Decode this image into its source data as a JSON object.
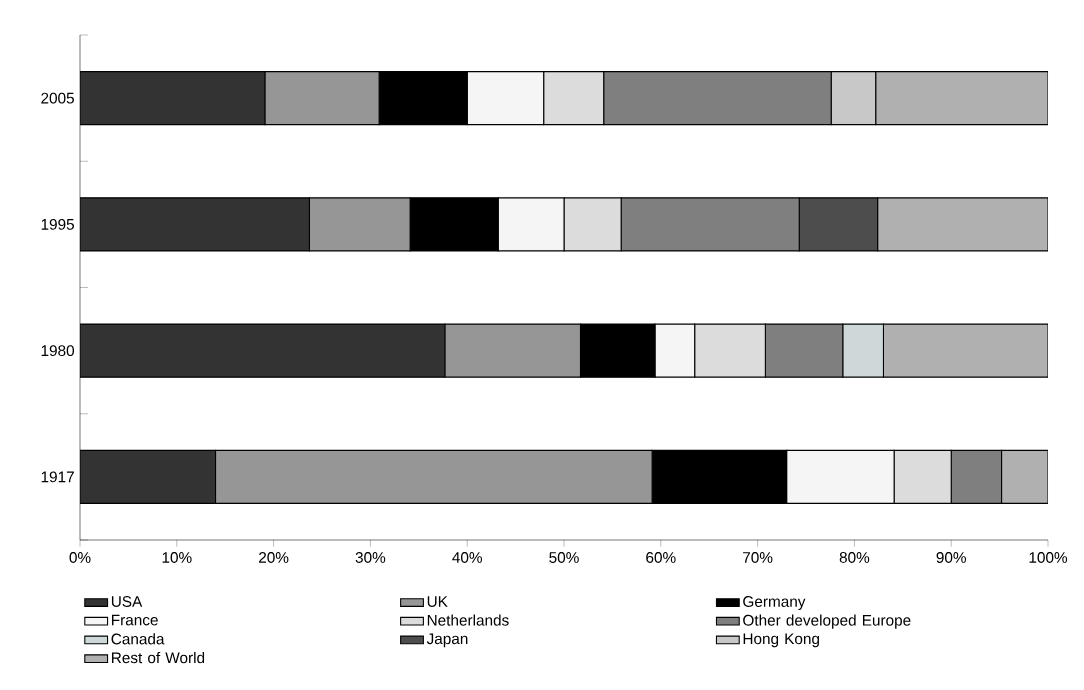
{
  "chart_data": {
    "type": "bar",
    "orientation": "horizontal",
    "stacked": true,
    "categories": [
      "2005",
      "1995",
      "1980",
      "1917"
    ],
    "series": [
      {
        "name": "USA",
        "color": "#333333",
        "values": [
          19.1,
          23.7,
          37.7,
          14.0
        ]
      },
      {
        "name": "UK",
        "color": "#969696",
        "values": [
          11.8,
          10.4,
          14.0,
          45.1
        ]
      },
      {
        "name": "Germany",
        "color": "#000000",
        "values": [
          9.1,
          9.1,
          7.7,
          13.9
        ]
      },
      {
        "name": "France",
        "color": "#f5f5f5",
        "values": [
          7.9,
          6.8,
          4.1,
          11.1
        ]
      },
      {
        "name": "Netherlands",
        "color": "#dcdcdc",
        "values": [
          6.2,
          5.9,
          7.3,
          5.9
        ]
      },
      {
        "name": "Other developed Europe",
        "color": "#7f7f7f",
        "values": [
          23.5,
          18.4,
          8.0,
          5.2
        ]
      },
      {
        "name": "Canada",
        "color": "#cfd8d8",
        "values": [
          0,
          0,
          4.2,
          0
        ]
      },
      {
        "name": "Japan",
        "color": "#4d4d4d",
        "values": [
          0,
          8.1,
          0,
          0
        ]
      },
      {
        "name": "Hong Kong",
        "color": "#c8c8c8",
        "values": [
          4.6,
          0,
          0,
          0
        ]
      },
      {
        "name": "Rest of World",
        "color": "#b0b0b0",
        "values": [
          17.8,
          17.6,
          17.0,
          4.8
        ]
      }
    ],
    "xlim": [
      0,
      100
    ],
    "xticks": [
      {
        "value": 0,
        "label": "0%"
      },
      {
        "value": 10,
        "label": "10%"
      },
      {
        "value": 20,
        "label": "20%"
      },
      {
        "value": 30,
        "label": "30%"
      },
      {
        "value": 40,
        "label": "40%"
      },
      {
        "value": 50,
        "label": "50%"
      },
      {
        "value": 60,
        "label": "60%"
      },
      {
        "value": 70,
        "label": "70%"
      },
      {
        "value": 80,
        "label": "80%"
      },
      {
        "value": 90,
        "label": "90%"
      },
      {
        "value": 100,
        "label": "100%"
      }
    ],
    "grid": false,
    "legend": "bottom"
  }
}
